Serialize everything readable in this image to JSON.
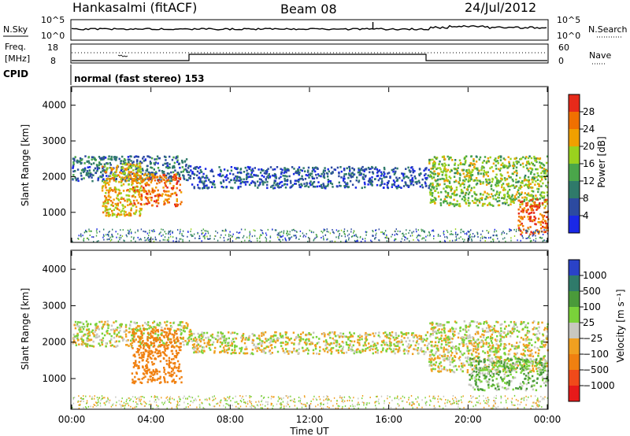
{
  "header": {
    "station": "Hankasalmi (fitACF)",
    "beam": "Beam 08",
    "date": "24/Jul/2012"
  },
  "aux_panels": {
    "nsky": {
      "label": "N.Sky",
      "ticks": [
        "10^5",
        "10^0"
      ]
    },
    "nsearch": {
      "label": "N.Search",
      "ticks": [
        "10^5",
        "10^0"
      ]
    },
    "freq": {
      "label_top": "Freq.",
      "label_unit": "[MHz]",
      "ticks": [
        "18",
        "8"
      ]
    },
    "nave": {
      "label": "Nave",
      "ticks": [
        "60",
        "0"
      ]
    },
    "cpid": {
      "label": "CPID",
      "mode_text": "normal (fast stereo) 153"
    }
  },
  "axes": {
    "ylabel": "Slant Range [km]",
    "yticks": [
      "1000",
      "2000",
      "3000",
      "4000"
    ],
    "xlabel": "Time UT",
    "xticks": [
      "00:00",
      "04:00",
      "08:00",
      "12:00",
      "16:00",
      "20:00",
      "00:00"
    ]
  },
  "power_scale": {
    "label": "Power [dB]",
    "ticks": [
      "4",
      "8",
      "12",
      "16",
      "20",
      "24",
      "28"
    ],
    "colors": [
      "#1a28e6",
      "#2c4aa0",
      "#2f7a6a",
      "#4aa64a",
      "#9ad21e",
      "#f0a000",
      "#f07000",
      "#e62a1a"
    ]
  },
  "velocity_scale": {
    "label": "Velocity [m s⁻¹]",
    "ticks": [
      "1000",
      "500",
      "100",
      "25",
      "−25",
      "−100",
      "−500",
      "−1000"
    ],
    "colors": [
      "#2a42c8",
      "#2f7a6a",
      "#4a9a3a",
      "#7ad23a",
      "#c8c8c0",
      "#f0a020",
      "#f08010",
      "#f04a1a",
      "#e61a1a"
    ]
  },
  "chart_data": [
    {
      "type": "heatmap",
      "title": "Power",
      "x_range_hours": [
        0,
        24
      ],
      "y_range_km": [
        180,
        4500
      ],
      "colorbar_label": "Power [dB]",
      "colorbar_range": [
        0,
        30
      ],
      "echo_regions": [
        {
          "t_start": 0.0,
          "t_end": 6.0,
          "range_km": [
            1900,
            2600
          ],
          "power_db": 8
        },
        {
          "t_start": 1.5,
          "t_end": 3.5,
          "range_km": [
            900,
            2400
          ],
          "power_db": 20
        },
        {
          "t_start": 3.0,
          "t_end": 5.5,
          "range_km": [
            1200,
            2100
          ],
          "power_db": 24
        },
        {
          "t_start": 6.0,
          "t_end": 18.0,
          "range_km": [
            1700,
            2300
          ],
          "power_db": 6
        },
        {
          "t_start": 18.0,
          "t_end": 24.0,
          "range_km": [
            1200,
            2600
          ],
          "power_db": 16
        },
        {
          "t_start": 22.5,
          "t_end": 24.0,
          "range_km": [
            400,
            1400
          ],
          "power_db": 26
        }
      ]
    },
    {
      "type": "heatmap",
      "title": "Velocity",
      "x_range_hours": [
        0,
        24
      ],
      "y_range_km": [
        180,
        4500
      ],
      "colorbar_label": "Velocity [m s⁻¹]",
      "colorbar_range": [
        -1000,
        1000
      ],
      "echo_regions": [
        {
          "t_start": 0.0,
          "t_end": 6.0,
          "range_km": [
            1900,
            2600
          ],
          "velocity": 0
        },
        {
          "t_start": 3.0,
          "t_end": 5.5,
          "range_km": [
            900,
            2400
          ],
          "velocity": -300
        },
        {
          "t_start": 6.0,
          "t_end": 18.0,
          "range_km": [
            1700,
            2300
          ],
          "velocity": 0
        },
        {
          "t_start": 18.0,
          "t_end": 24.0,
          "range_km": [
            1200,
            2600
          ],
          "velocity": 0
        },
        {
          "t_start": 20.0,
          "t_end": 24.0,
          "range_km": [
            700,
            1600
          ],
          "velocity": 80
        }
      ]
    }
  ]
}
